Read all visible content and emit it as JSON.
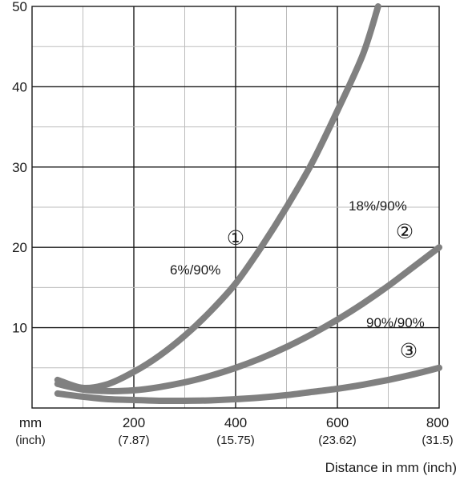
{
  "chart_data": {
    "type": "line",
    "title": "",
    "xlabel": "Distance in mm (inch)",
    "ylabel": "",
    "x_unit_label": "mm",
    "x_unit_sub_label": "(inch)",
    "xlim": [
      0,
      800
    ],
    "ylim": [
      0,
      50
    ],
    "x_ticks": [
      {
        "value": 200,
        "label": "200",
        "sub": "(7.87)"
      },
      {
        "value": 400,
        "label": "400",
        "sub": "(15.75)"
      },
      {
        "value": 600,
        "label": "600",
        "sub": "(23.62)"
      },
      {
        "value": 800,
        "label": "800",
        "sub": "(31.5)"
      }
    ],
    "y_ticks": [
      10,
      20,
      30,
      40,
      50
    ],
    "grid": true,
    "grid_x_step": 100,
    "grid_y_step": 5,
    "series": [
      {
        "name": "6%/90%",
        "marker": "①",
        "color": "#808080",
        "x": [
          50,
          100,
          150,
          200,
          250,
          300,
          350,
          400,
          450,
          500,
          550,
          600,
          650,
          680
        ],
        "y": [
          3.5,
          2.5,
          3.0,
          4.5,
          6.5,
          9.0,
          12.0,
          15.5,
          20.0,
          25.0,
          30.5,
          37.0,
          44.0,
          50.0
        ]
      },
      {
        "name": "18%/90%",
        "marker": "②",
        "color": "#808080",
        "x": [
          50,
          100,
          150,
          200,
          250,
          300,
          350,
          400,
          450,
          500,
          550,
          600,
          650,
          700,
          750,
          800
        ],
        "y": [
          3.0,
          2.3,
          2.1,
          2.2,
          2.6,
          3.2,
          4.0,
          5.0,
          6.2,
          7.6,
          9.2,
          11.0,
          13.0,
          15.2,
          17.6,
          20.0
        ]
      },
      {
        "name": "90%/90%",
        "marker": "③",
        "color": "#808080",
        "x": [
          50,
          100,
          150,
          200,
          250,
          300,
          350,
          400,
          450,
          500,
          550,
          600,
          650,
          700,
          750,
          800
        ],
        "y": [
          1.8,
          1.4,
          1.1,
          1.0,
          0.9,
          0.9,
          0.95,
          1.1,
          1.3,
          1.6,
          2.0,
          2.4,
          2.9,
          3.5,
          4.2,
          5.0
        ]
      }
    ]
  }
}
